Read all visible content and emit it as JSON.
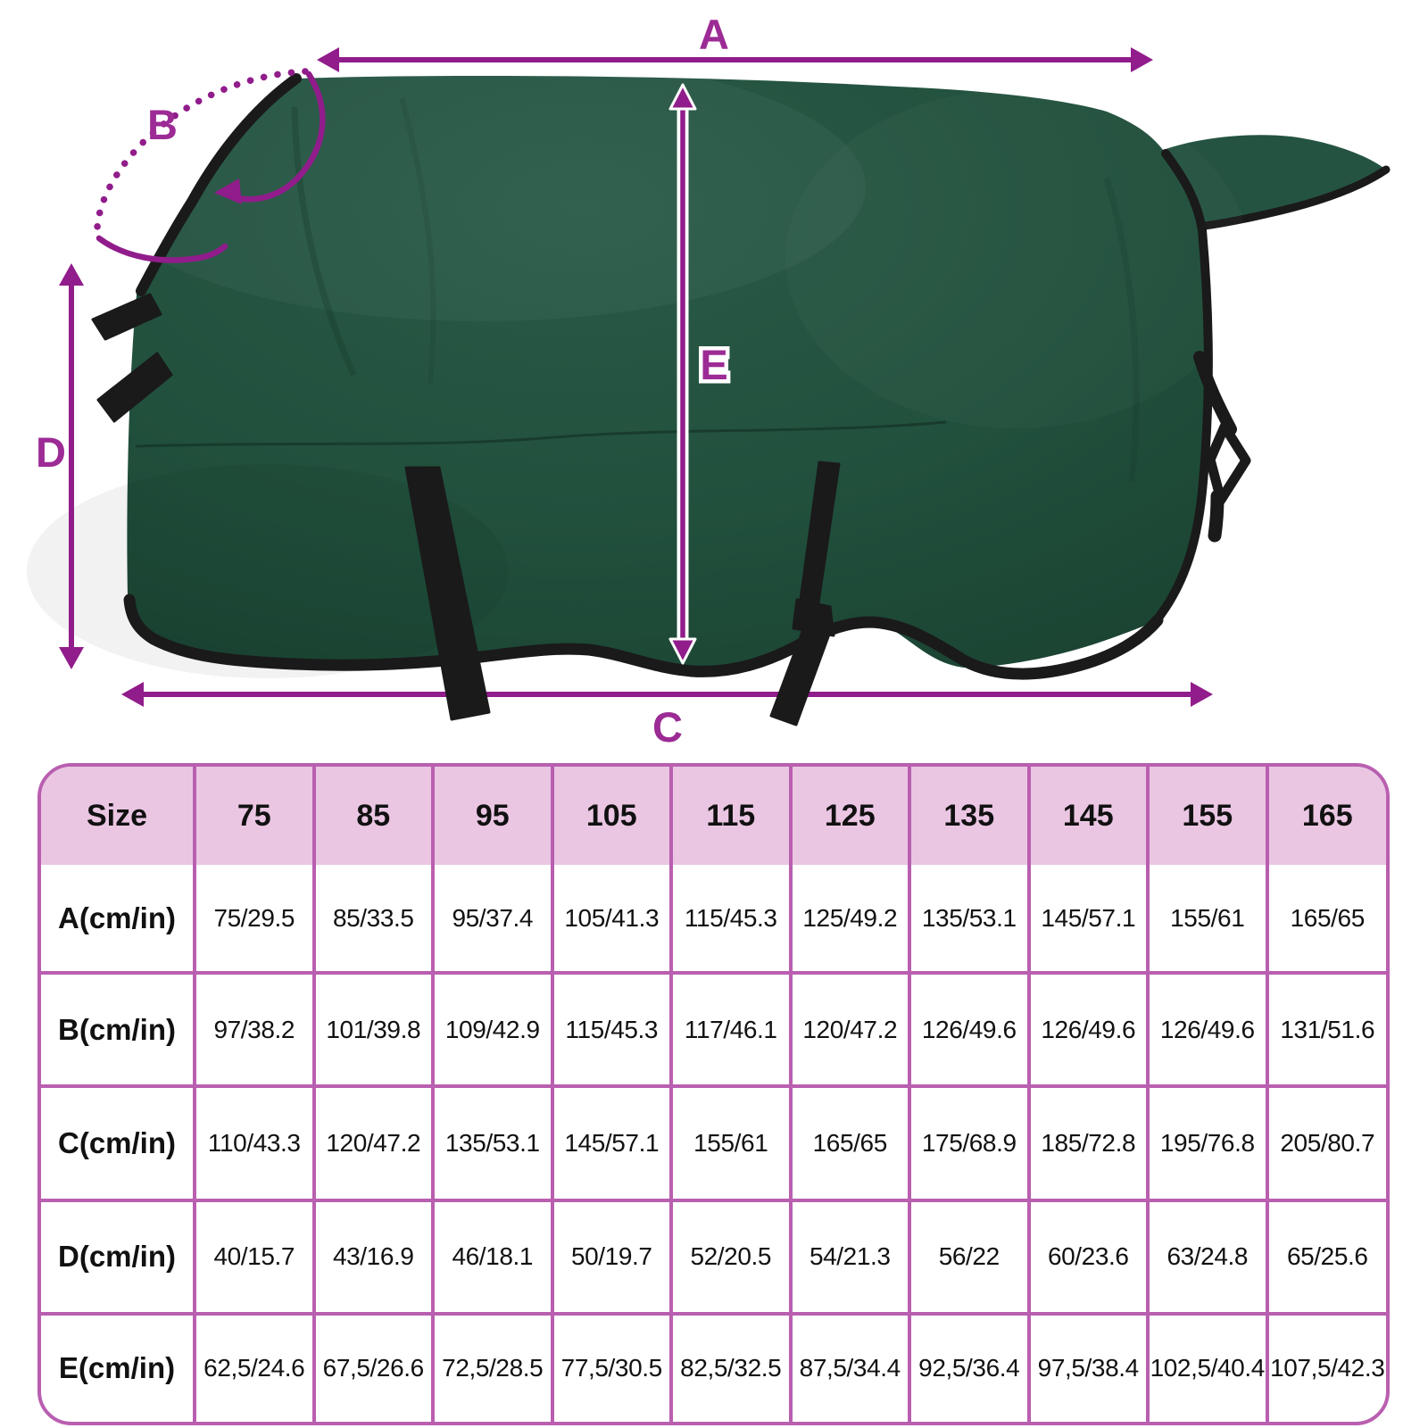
{
  "colors": {
    "arrow_color": "#911C8B",
    "label_color": "#9C2B95",
    "blanket_green": "#21503D",
    "blanket_green_light": "#2A5B48",
    "blanket_green_dark": "#1A4231",
    "binding_color": "#1A1A1A",
    "neck_binding_color": "#3A3A3A",
    "table_border": "#B95FB0",
    "table_header_bg": "#EAC6E3",
    "table_cell_bg": "#FFFFFF",
    "table_text": "#111111"
  },
  "diagram": {
    "labels": {
      "a": "A",
      "b": "B",
      "c": "C",
      "d": "D",
      "e": "E"
    },
    "icons": [
      "horse-blanket-illustration",
      "measure-arrow-a",
      "measure-ellipse-b",
      "measure-arrow-c",
      "measure-arrow-d",
      "measure-arrow-e"
    ]
  },
  "table": {
    "header": [
      "Size",
      "75",
      "85",
      "95",
      "105",
      "115",
      "125",
      "135",
      "145",
      "155",
      "165"
    ],
    "rows": [
      {
        "label": "A(cm/in)",
        "values": [
          "75/29.5",
          "85/33.5",
          "95/37.4",
          "105/41.3",
          "115/45.3",
          "125/49.2",
          "135/53.1",
          "145/57.1",
          "155/61",
          "165/65"
        ]
      },
      {
        "label": "B(cm/in)",
        "values": [
          "97/38.2",
          "101/39.8",
          "109/42.9",
          "115/45.3",
          "117/46.1",
          "120/47.2",
          "126/49.6",
          "126/49.6",
          "126/49.6",
          "131/51.6"
        ]
      },
      {
        "label": "C(cm/in)",
        "values": [
          "110/43.3",
          "120/47.2",
          "135/53.1",
          "145/57.1",
          "155/61",
          "165/65",
          "175/68.9",
          "185/72.8",
          "195/76.8",
          "205/80.7"
        ]
      },
      {
        "label": "D(cm/in)",
        "values": [
          "40/15.7",
          "43/16.9",
          "46/18.1",
          "50/19.7",
          "52/20.5",
          "54/21.3",
          "56/22",
          "60/23.6",
          "63/24.8",
          "65/25.6"
        ]
      },
      {
        "label": "E(cm/in)",
        "values": [
          "62,5/24.6",
          "67,5/26.6",
          "72,5/28.5",
          "77,5/30.5",
          "82,5/32.5",
          "87,5/34.4",
          "92,5/36.4",
          "97,5/38.4",
          "102,5/40.4",
          "107,5/42.3"
        ]
      }
    ]
  }
}
